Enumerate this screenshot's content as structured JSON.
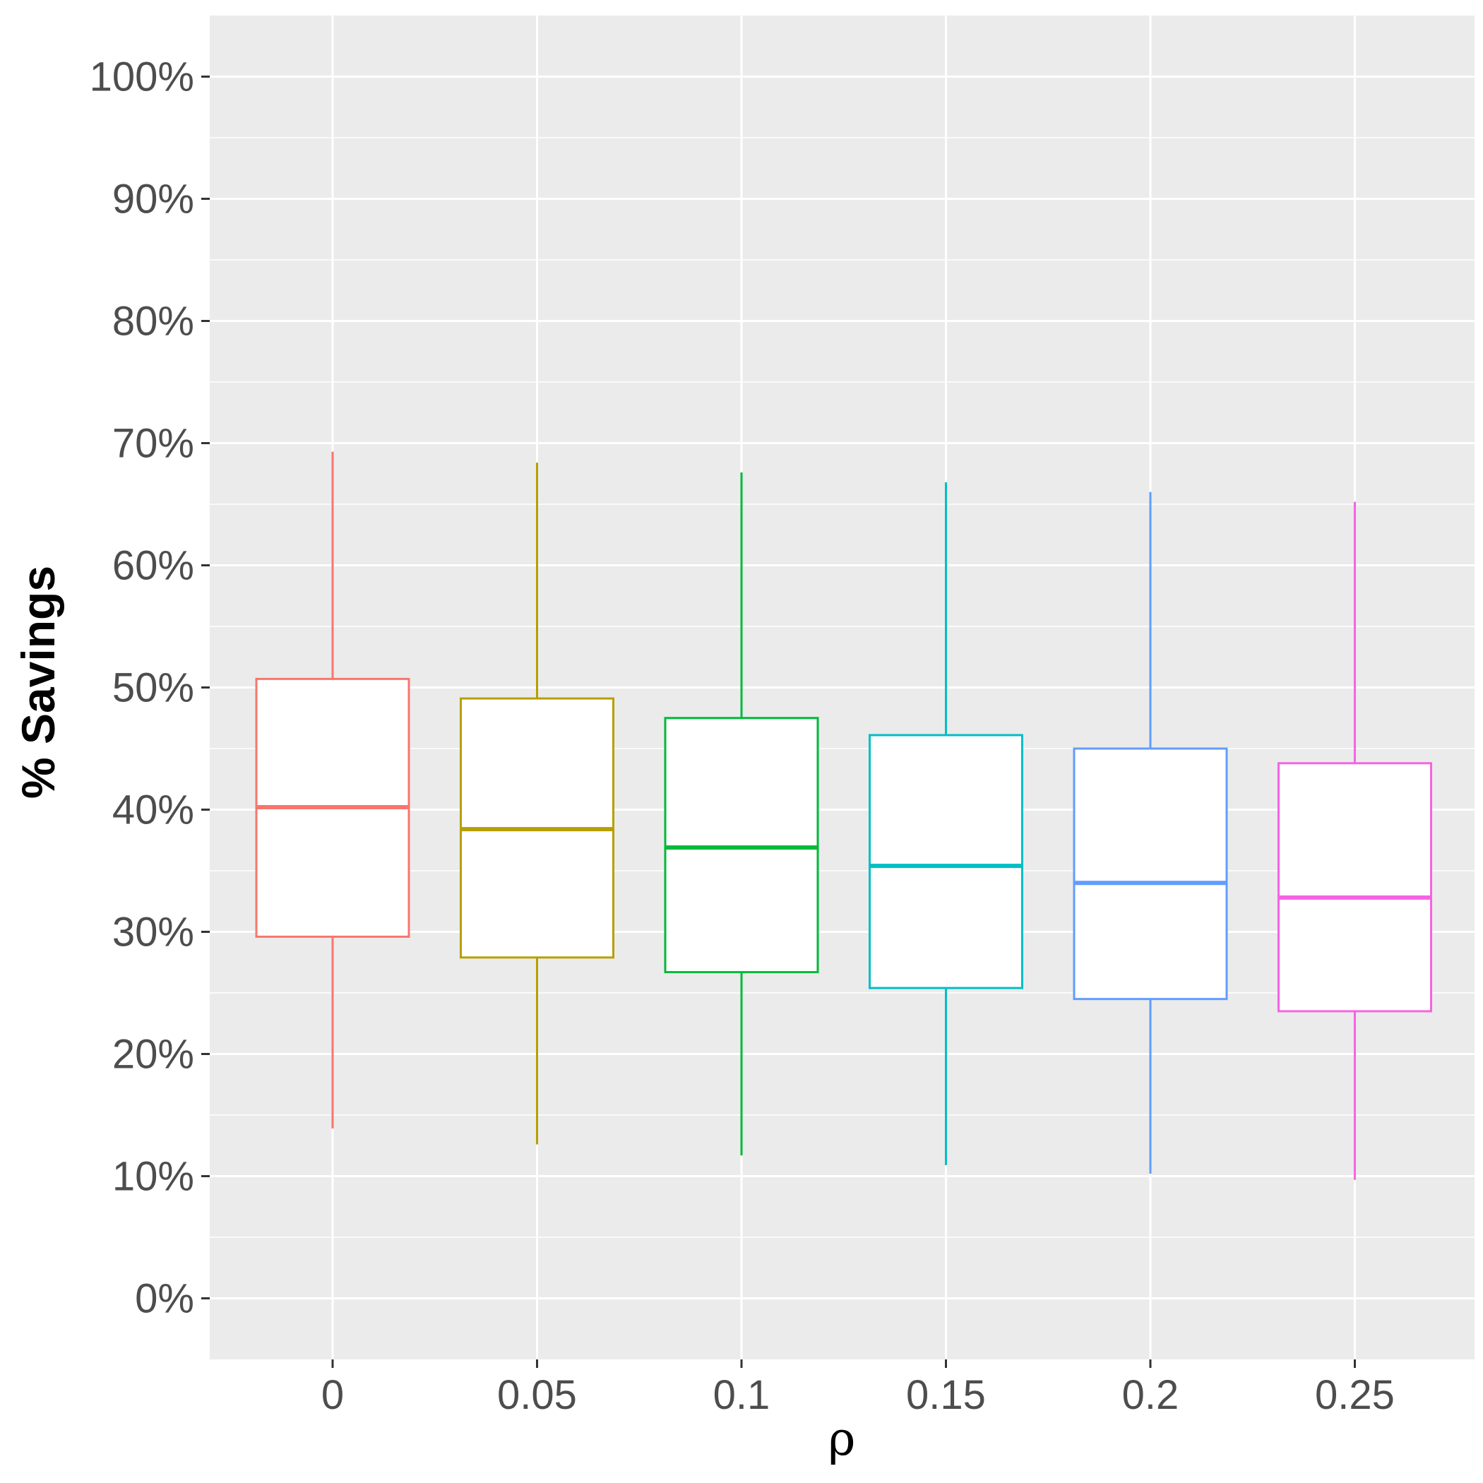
{
  "chart_data": {
    "type": "boxplot",
    "title": "",
    "xlabel": "ρ",
    "ylabel": "% Savings",
    "categories": [
      "0",
      "0.05",
      "0.1",
      "0.15",
      "0.2",
      "0.25"
    ],
    "colors": [
      "#F8766D",
      "#B79F00",
      "#00BA38",
      "#00BFC4",
      "#619CFF",
      "#F564E3"
    ],
    "yticks": [
      0,
      10,
      20,
      30,
      40,
      50,
      60,
      70,
      80,
      90,
      100
    ],
    "ytick_labels": [
      "0%",
      "10%",
      "20%",
      "30%",
      "40%",
      "50%",
      "60%",
      "70%",
      "80%",
      "90%",
      "100%"
    ],
    "ylim": [
      -5,
      105
    ],
    "grid": true,
    "background": "#EBEBEB",
    "series": [
      {
        "name": "0",
        "whisker_low": 13.9,
        "q1": 29.6,
        "median": 40.2,
        "q3": 50.7,
        "whisker_high": 69.3
      },
      {
        "name": "0.05",
        "whisker_low": 12.6,
        "q1": 27.9,
        "median": 38.4,
        "q3": 49.1,
        "whisker_high": 68.4
      },
      {
        "name": "0.1",
        "whisker_low": 11.7,
        "q1": 26.7,
        "median": 36.9,
        "q3": 47.5,
        "whisker_high": 67.6
      },
      {
        "name": "0.15",
        "whisker_low": 10.9,
        "q1": 25.4,
        "median": 35.4,
        "q3": 46.1,
        "whisker_high": 66.8
      },
      {
        "name": "0.2",
        "whisker_low": 10.2,
        "q1": 24.5,
        "median": 34.0,
        "q3": 45.0,
        "whisker_high": 66.0
      },
      {
        "name": "0.25",
        "whisker_low": 9.7,
        "q1": 23.5,
        "median": 32.8,
        "q3": 43.8,
        "whisker_high": 65.2
      }
    ]
  }
}
